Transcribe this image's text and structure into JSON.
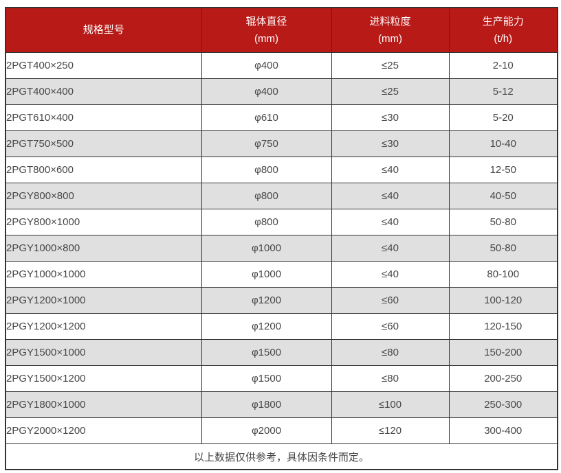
{
  "colors": {
    "header_bg": "#b81a17",
    "header_text": "#ffffff",
    "row_alt_bg": "#e0e0e0",
    "border": "#333333",
    "body_text": "#474747"
  },
  "table": {
    "columns": [
      {
        "key": "model",
        "title": "规格型号",
        "unit": ""
      },
      {
        "key": "roller-diameter",
        "title": "辊体直径",
        "unit": "(mm)"
      },
      {
        "key": "feed-size",
        "title": "进料粒度",
        "unit": "(mm)"
      },
      {
        "key": "capacity",
        "title": "生产能力",
        "unit": "(t/h)"
      }
    ],
    "rows": [
      [
        "2PGT400×250",
        "φ400",
        "≤25",
        "2-10"
      ],
      [
        "2PGT400×400",
        "φ400",
        "≤25",
        "5-12"
      ],
      [
        "2PGT610×400",
        "φ610",
        "≤30",
        "5-20"
      ],
      [
        "2PGT750×500",
        "φ750",
        "≤30",
        "10-40"
      ],
      [
        "2PGT800×600",
        "φ800",
        "≤40",
        "12-50"
      ],
      [
        "2PGY800×800",
        "φ800",
        "≤40",
        "40-50"
      ],
      [
        "2PGY800×1000",
        "φ800",
        "≤40",
        "50-80"
      ],
      [
        "2PGY1000×800",
        "φ1000",
        "≤40",
        "50-80"
      ],
      [
        "2PGY1000×1000",
        "φ1000",
        "≤40",
        "80-100"
      ],
      [
        "2PGY1200×1000",
        "φ1200",
        "≤60",
        "100-120"
      ],
      [
        "2PGY1200×1200",
        "φ1200",
        "≤60",
        "120-150"
      ],
      [
        "2PGY1500×1000",
        "φ1500",
        "≤80",
        "150-200"
      ],
      [
        "2PGY1500×1200",
        "φ1500",
        "≤80",
        "200-250"
      ],
      [
        "2PGY1800×1000",
        "φ1800",
        "≤100",
        "250-300"
      ],
      [
        "2PGY2000×1200",
        "φ2000",
        "≤120",
        "300-400"
      ]
    ],
    "footnote": "以上数据仅供参考，具体因条件而定。"
  }
}
